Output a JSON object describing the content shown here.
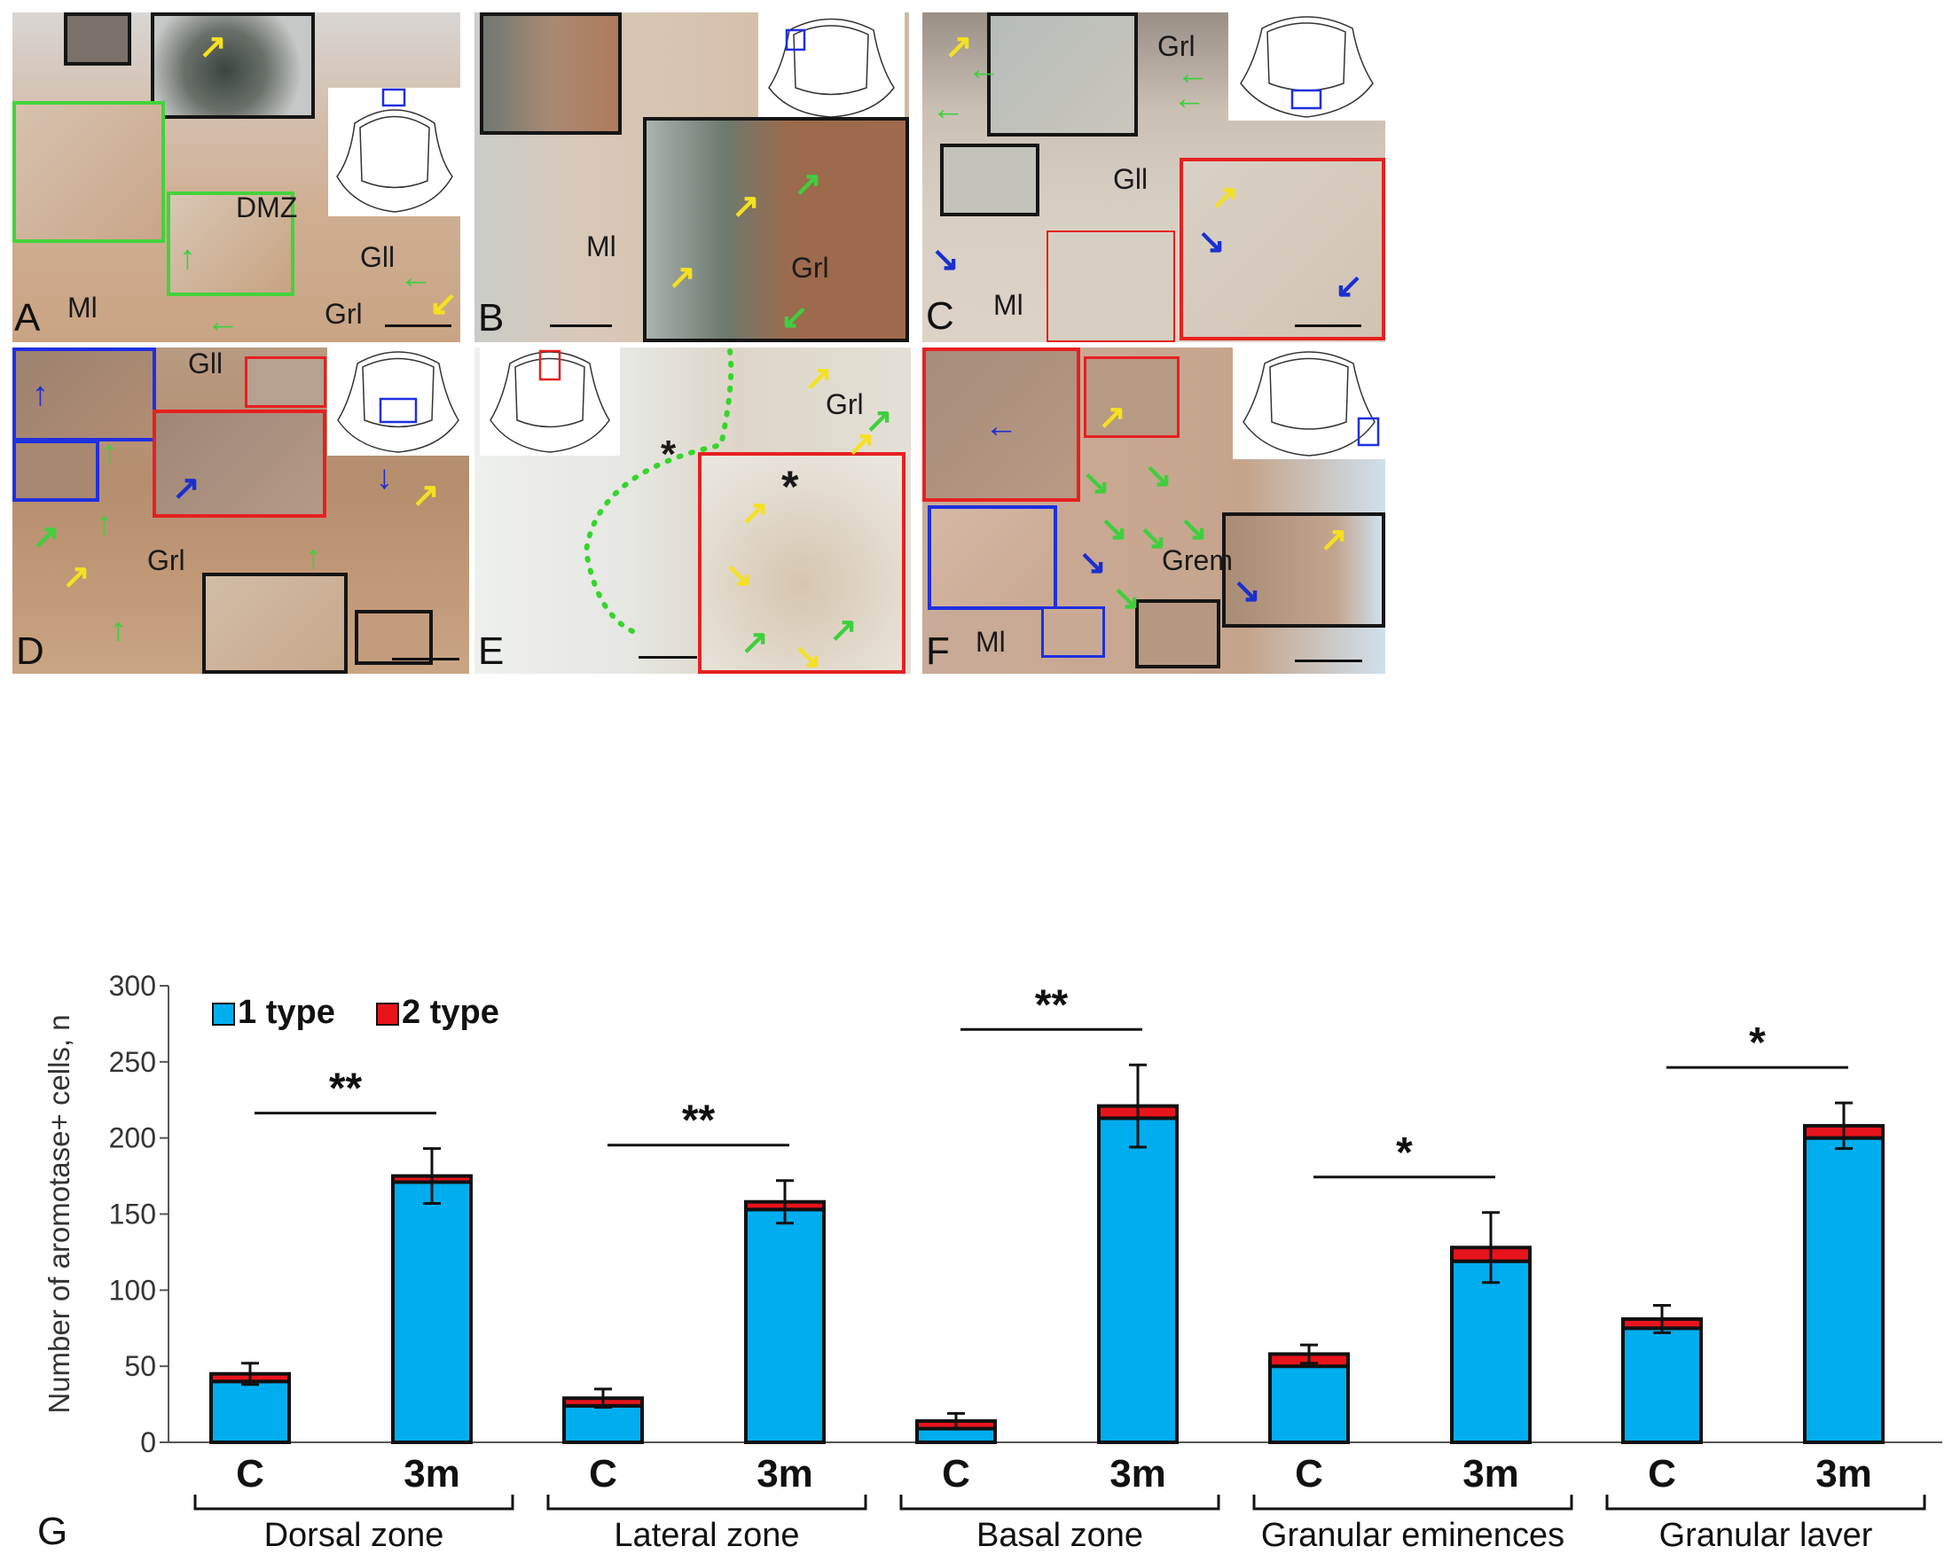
{
  "panels": [
    {
      "id": "A",
      "letter": "A",
      "labels": {
        "dmz": "DMZ",
        "gll": "Gll",
        "ml": "Ml",
        "grl": "Grl"
      }
    },
    {
      "id": "B",
      "letter": "B",
      "labels": {
        "ml": "Ml",
        "grl": "Grl"
      }
    },
    {
      "id": "C",
      "letter": "C",
      "labels": {
        "grl": "Grl",
        "gll": "Gll",
        "ml": "Ml"
      }
    },
    {
      "id": "D",
      "letter": "D",
      "labels": {
        "gll": "Gll",
        "grl": "Grl"
      }
    },
    {
      "id": "E",
      "letter": "E",
      "labels": {
        "grl": "Grl",
        "asterisk": "*",
        "asterisk2": "*"
      }
    },
    {
      "id": "F",
      "letter": "F",
      "labels": {
        "ml": "Ml",
        "grem": "Grem"
      }
    }
  ],
  "colors": {
    "type1": "#00AEEF",
    "type2": "#E8141C",
    "green_arrow": "#3ecf3e",
    "yellow_arrow": "#f5e020",
    "blue_arrow": "#1a2fd0",
    "inset_green": "#44d23a",
    "inset_red": "#e62020",
    "inset_blue": "#1f2fe0",
    "inset_black": "#151515"
  },
  "chart_data": {
    "type": "bar",
    "panel_letter": "G",
    "ylabel": "Number of aromotase+ cells, n",
    "ylim": [
      0,
      300
    ],
    "yticks": [
      0,
      50,
      100,
      150,
      200,
      250,
      300
    ],
    "stacked": true,
    "legend": {
      "placement": "top-left",
      "entries": [
        "1 type",
        "2 type"
      ]
    },
    "groups": [
      {
        "name": "Dorsal zone",
        "categories": [
          "C",
          "3m"
        ],
        "type1": [
          40,
          171
        ],
        "type2": [
          5,
          4
        ],
        "error": [
          7,
          18
        ],
        "significance": "**"
      },
      {
        "name": "Lateral zone",
        "categories": [
          "C",
          "3m"
        ],
        "type1": [
          24,
          153
        ],
        "type2": [
          5,
          5
        ],
        "error": [
          6,
          14
        ],
        "significance": "**"
      },
      {
        "name": "Basal zone",
        "categories": [
          "C",
          "3m"
        ],
        "type1": [
          9,
          213
        ],
        "type2": [
          5,
          8
        ],
        "error": [
          5,
          27
        ],
        "significance": "**"
      },
      {
        "name": "Granular eminences",
        "categories": [
          "C",
          "3m"
        ],
        "type1": [
          50,
          119
        ],
        "type2": [
          8,
          9
        ],
        "error": [
          6,
          23
        ],
        "significance": "*"
      },
      {
        "name": "Granular laver",
        "categories": [
          "C",
          "3m"
        ],
        "type1": [
          75,
          200
        ],
        "type2": [
          6,
          8
        ],
        "error": [
          9,
          15
        ],
        "significance": "*"
      }
    ]
  }
}
